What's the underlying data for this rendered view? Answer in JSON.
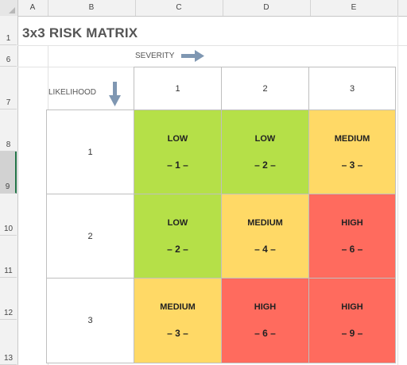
{
  "spreadsheet": {
    "columns": [
      "A",
      "B",
      "C",
      "D",
      "E"
    ],
    "rows": [
      "1",
      "6",
      "7",
      "8",
      "9",
      "10",
      "11",
      "12",
      "13"
    ],
    "selected_row": "9"
  },
  "matrix": {
    "title": "3x3 RISK MATRIX",
    "severity_label": "SEVERITY",
    "likelihood_label": "LIKELIHOOD",
    "severity_levels": [
      "1",
      "2",
      "3"
    ],
    "likelihood_levels": [
      "1",
      "2",
      "3"
    ],
    "cells": [
      [
        {
          "level": "LOW",
          "score": "– 1 –",
          "color": "#b5e048"
        },
        {
          "level": "LOW",
          "score": "– 2 –",
          "color": "#b5e048"
        },
        {
          "level": "MEDIUM",
          "score": "– 3 –",
          "color": "#ffd966"
        }
      ],
      [
        {
          "level": "LOW",
          "score": "– 2 –",
          "color": "#b5e048"
        },
        {
          "level": "MEDIUM",
          "score": "– 4 –",
          "color": "#ffd966"
        },
        {
          "level": "HIGH",
          "score": "– 6 –",
          "color": "#ff6b5e"
        }
      ],
      [
        {
          "level": "MEDIUM",
          "score": "– 3 –",
          "color": "#ffd966"
        },
        {
          "level": "HIGH",
          "score": "– 6 –",
          "color": "#ff6b5e"
        },
        {
          "level": "HIGH",
          "score": "– 9 –",
          "color": "#ff6b5e"
        }
      ]
    ],
    "colors": {
      "low": "#b5e048",
      "medium": "#ffd966",
      "high": "#ff6b5e",
      "arrow": "#7f97b2"
    }
  }
}
